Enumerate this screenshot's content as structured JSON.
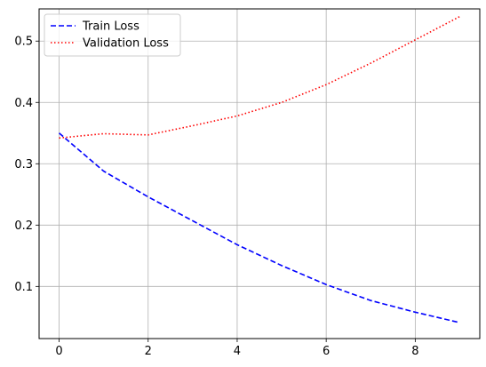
{
  "chart_data": {
    "type": "line",
    "title": "",
    "xlabel": "",
    "ylabel": "",
    "xlim": [
      -0.45,
      9.45
    ],
    "ylim": [
      0.015,
      0.5525
    ],
    "x_ticks": [
      0,
      2,
      4,
      6,
      8
    ],
    "x_tick_labels": [
      "0",
      "2",
      "4",
      "6",
      "8"
    ],
    "y_ticks": [
      0.1,
      0.2,
      0.3,
      0.4,
      0.5
    ],
    "y_tick_labels": [
      "0.1",
      "0.2",
      "0.3",
      "0.4",
      "0.5"
    ],
    "grid": true,
    "legend_position": "top-left",
    "x": [
      0,
      1,
      2,
      3,
      4,
      5,
      6,
      7,
      8,
      9
    ],
    "series": [
      {
        "name": "Train Loss",
        "color": "#0000ff",
        "line_style": "dashed",
        "values": [
          0.35,
          0.288,
          0.246,
          0.207,
          0.168,
          0.134,
          0.103,
          0.077,
          0.058,
          0.041
        ]
      },
      {
        "name": "Validation Loss",
        "color": "#ff0000",
        "line_style": "dotted",
        "values": [
          0.342,
          0.349,
          0.347,
          0.362,
          0.378,
          0.4,
          0.429,
          0.464,
          0.502,
          0.54
        ]
      }
    ]
  }
}
